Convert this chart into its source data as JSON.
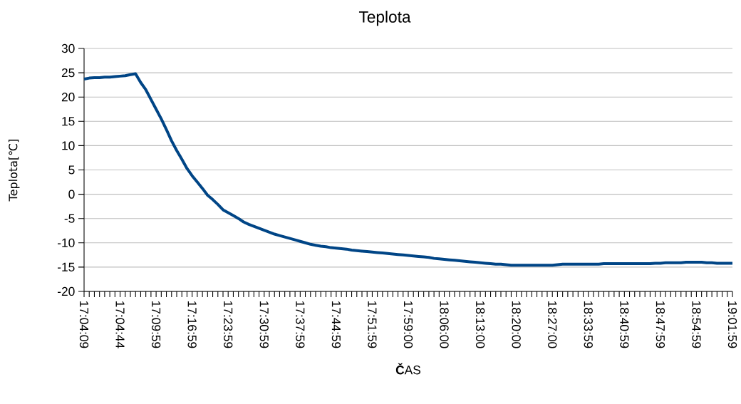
{
  "chart_data": {
    "type": "line",
    "title": "Teplota",
    "xlabel": "**Č**AS",
    "ylabel": "Teplota[℃]",
    "categories": [
      "17:04:09",
      null,
      null,
      null,
      null,
      null,
      null,
      "17:04:44",
      null,
      null,
      null,
      null,
      null,
      null,
      "17:09:59",
      null,
      null,
      null,
      null,
      null,
      null,
      "17:16:59",
      null,
      null,
      null,
      null,
      null,
      null,
      "17:23:59",
      null,
      null,
      null,
      null,
      null,
      null,
      "17:30:59",
      null,
      null,
      null,
      null,
      null,
      null,
      "17:37:59",
      null,
      null,
      null,
      null,
      null,
      null,
      "17:44:59",
      null,
      null,
      null,
      null,
      null,
      null,
      "17:51:59",
      null,
      null,
      null,
      null,
      null,
      null,
      "17:59:00",
      null,
      null,
      null,
      null,
      null,
      null,
      "18:06:00",
      null,
      null,
      null,
      null,
      null,
      null,
      "18:13:00",
      null,
      null,
      null,
      null,
      null,
      null,
      "18:20:00",
      null,
      null,
      null,
      null,
      null,
      null,
      "18:27:00",
      null,
      null,
      null,
      null,
      null,
      null,
      "18:33:59",
      null,
      null,
      null,
      null,
      null,
      null,
      "18:40:59",
      null,
      null,
      null,
      null,
      null,
      null,
      "18:47:59",
      null,
      null,
      null,
      null,
      null,
      null,
      "18:54:59",
      null,
      null,
      null,
      null,
      null,
      null,
      "19:01:59"
    ],
    "series": [
      {
        "color": "#004586",
        "values": [
          23.7,
          23.9,
          24.0,
          24.0,
          24.1,
          24.1,
          24.2,
          24.3,
          24.4,
          24.6,
          24.8,
          23.0,
          21.5,
          19.5,
          17.5,
          15.5,
          13.3,
          11.0,
          9.0,
          7.2,
          5.3,
          3.8,
          2.5,
          1.2,
          -0.2,
          -1.1,
          -2.1,
          -3.2,
          -3.8,
          -4.4,
          -5.0,
          -5.7,
          -6.2,
          -6.6,
          -7.0,
          -7.4,
          -7.8,
          -8.2,
          -8.5,
          -8.8,
          -9.1,
          -9.4,
          -9.7,
          -10.0,
          -10.3,
          -10.5,
          -10.7,
          -10.8,
          -11.0,
          -11.1,
          -11.2,
          -11.3,
          -11.5,
          -11.6,
          -11.7,
          -11.8,
          -11.9,
          -12.0,
          -12.1,
          -12.2,
          -12.3,
          -12.4,
          -12.5,
          -12.6,
          -12.7,
          -12.8,
          -12.9,
          -13.0,
          -13.2,
          -13.3,
          -13.4,
          -13.5,
          -13.6,
          -13.7,
          -13.8,
          -13.9,
          -14.0,
          -14.1,
          -14.2,
          -14.3,
          -14.4,
          -14.4,
          -14.5,
          -14.6,
          -14.6,
          -14.6,
          -14.6,
          -14.6,
          -14.6,
          -14.6,
          -14.6,
          -14.6,
          -14.5,
          -14.4,
          -14.4,
          -14.4,
          -14.4,
          -14.4,
          -14.4,
          -14.4,
          -14.4,
          -14.3,
          -14.3,
          -14.3,
          -14.3,
          -14.3,
          -14.3,
          -14.3,
          -14.3,
          -14.3,
          -14.3,
          -14.2,
          -14.2,
          -14.1,
          -14.1,
          -14.1,
          -14.1,
          -14.0,
          -14.0,
          -14.0,
          -14.0,
          -14.1,
          -14.1,
          -14.2,
          -14.2,
          -14.2,
          -14.2
        ]
      }
    ],
    "ylim": [
      -20,
      30
    ],
    "yticks": [
      -20,
      -15,
      -10,
      -5,
      0,
      5,
      10,
      15,
      20,
      25,
      30
    ],
    "grid": "y"
  }
}
